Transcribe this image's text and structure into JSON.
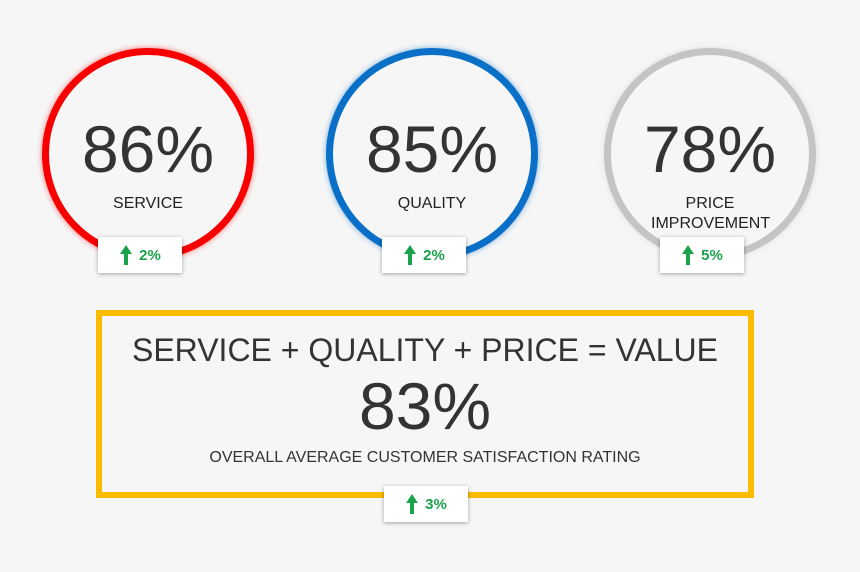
{
  "metrics": [
    {
      "value": "86%",
      "label": "SERVICE",
      "change": "2%",
      "color": "#f80000"
    },
    {
      "value": "85%",
      "label": "QUALITY",
      "change": "2%",
      "color": "#0a6fc7"
    },
    {
      "value": "78%",
      "label": "PRICE IMPROVEMENT",
      "change": "5%",
      "color": "#c4c4c4"
    }
  ],
  "summary": {
    "equation": "SERVICE + QUALITY + PRICE = VALUE",
    "value": "83%",
    "caption": "OVERALL AVERAGE CUSTOMER SATISFACTION RATING",
    "change": "3%",
    "color": "#fbbb00"
  }
}
